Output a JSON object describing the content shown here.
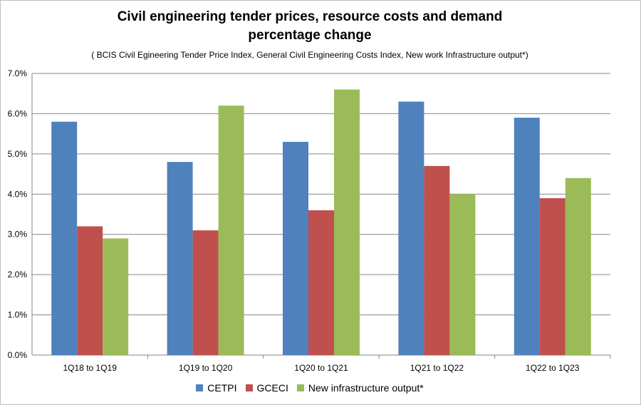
{
  "chart_data": {
    "type": "bar",
    "title_line1": "Civil engineering tender prices, resource costs and demand",
    "title_line2": "percentage change",
    "subtitle": "( BCIS Civil Egineering Tender Price Index, General Civil Engineering Costs Index, New work Infrastructure  output*)",
    "categories": [
      "1Q18 to 1Q19",
      "1Q19 to 1Q20",
      "1Q20 to 1Q21",
      "1Q21 to 1Q22",
      "1Q22 to 1Q23"
    ],
    "series": [
      {
        "name": "CETPI",
        "color": "#4f81bd",
        "values": [
          5.8,
          4.8,
          5.3,
          6.3,
          5.9
        ]
      },
      {
        "name": "GCECI",
        "color": "#c0504d",
        "values": [
          3.2,
          3.1,
          3.6,
          4.7,
          3.9
        ]
      },
      {
        "name": "New infrastructure output*",
        "color": "#9bbb59",
        "values": [
          2.9,
          6.2,
          6.6,
          4.0,
          4.4
        ]
      }
    ],
    "yticks": [
      "0.0%",
      "1.0%",
      "2.0%",
      "3.0%",
      "4.0%",
      "5.0%",
      "6.0%",
      "7.0%"
    ],
    "ylim": [
      0,
      7
    ],
    "grid": true,
    "legend_position": "bottom"
  }
}
